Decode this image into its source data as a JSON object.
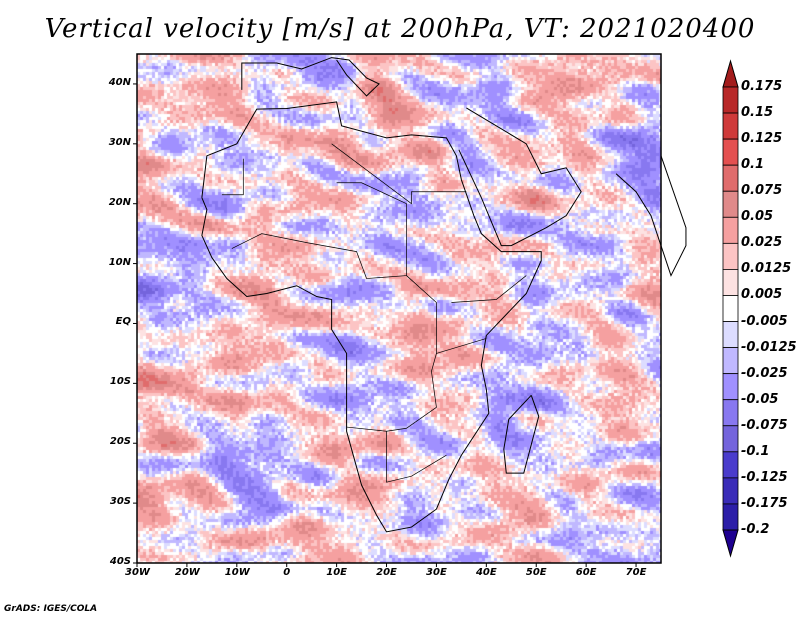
{
  "title": "Vertical velocity [m/s] at 200hPa, VT: 2021020400",
  "credit": "GrADS: IGES/COLA",
  "map": {
    "lon_range": [
      -30,
      75
    ],
    "lat_range": [
      -40,
      45
    ],
    "lon_ticks": [
      "30W",
      "20W",
      "10W",
      "0",
      "10E",
      "20E",
      "30E",
      "40E",
      "50E",
      "60E",
      "70E"
    ],
    "lat_ticks": [
      "40N",
      "30N",
      "20N",
      "10N",
      "EQ",
      "10S",
      "20S",
      "30S",
      "40S"
    ]
  },
  "colorbar": {
    "levels": [
      "0.175",
      "0.15",
      "0.125",
      "0.1",
      "0.075",
      "0.05",
      "0.025",
      "0.0125",
      "0.005",
      "-0.005",
      "-0.0125",
      "-0.025",
      "-0.05",
      "-0.075",
      "-0.1",
      "-0.125",
      "-0.175",
      "-0.2"
    ],
    "colors": [
      "#a31c1c",
      "#b82828",
      "#cf3a3a",
      "#e45050",
      "#e06c6c",
      "#e08a8a",
      "#f5a0a0",
      "#fcc4c4",
      "#fde2e2",
      "#ffffff",
      "#dcdcff",
      "#c0b8ff",
      "#a090ff",
      "#8878f0",
      "#7464dc",
      "#4a3ccc",
      "#3a2cb8",
      "#2c1ea8",
      "#1e0090"
    ]
  }
}
